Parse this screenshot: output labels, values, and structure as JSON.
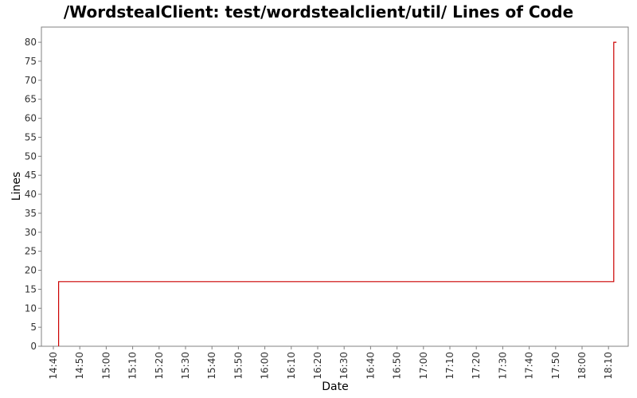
{
  "chart_data": {
    "type": "line",
    "title": "/WordstealClient: test/wordstealclient/util/ Lines of Code",
    "xlabel": "Date",
    "ylabel": "Lines",
    "x_tick_labels": [
      "14:40",
      "14:50",
      "15:00",
      "15:10",
      "15:20",
      "15:30",
      "15:40",
      "15:50",
      "16:00",
      "16:10",
      "16:20",
      "16:30",
      "16:40",
      "16:50",
      "17:00",
      "17:10",
      "17:20",
      "17:30",
      "17:40",
      "17:50",
      "18:00",
      "18:10"
    ],
    "y_ticks": [
      0,
      5,
      10,
      15,
      20,
      25,
      30,
      35,
      40,
      45,
      50,
      55,
      60,
      65,
      70,
      75,
      80
    ],
    "ylim": [
      0,
      84
    ],
    "xlim": [
      "14:40",
      "18:14"
    ],
    "step": true,
    "series": [
      {
        "color": "#cc0000",
        "points": [
          {
            "x": "14:42",
            "y": 0
          },
          {
            "x": "14:42",
            "y": 17
          },
          {
            "x": "18:12",
            "y": 17
          },
          {
            "x": "18:12",
            "y": 80
          },
          {
            "x": "18:13",
            "y": 80
          }
        ]
      }
    ],
    "grid": false,
    "legend": "none"
  }
}
